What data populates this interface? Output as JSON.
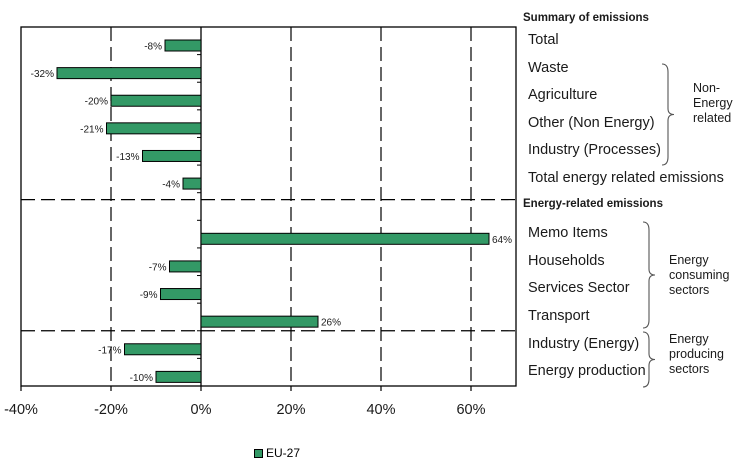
{
  "chart_data": {
    "type": "bar",
    "orientation": "horizontal",
    "title": "",
    "xlabel": "",
    "ylabel": "",
    "xlim": [
      -40,
      70
    ],
    "x_ticks": [
      -40,
      -20,
      0,
      20,
      40,
      60
    ],
    "x_tick_labels": [
      "-40%",
      "-20%",
      "0%",
      "20%",
      "40%",
      "60%"
    ],
    "grid": "vertical dashed",
    "bar_color": "#339966",
    "legend": {
      "position": "bottom",
      "entries": [
        "EU-27"
      ]
    },
    "series": [
      {
        "name": "EU-27",
        "values": [
          -8,
          -32,
          -20,
          -21,
          -13,
          -4,
          null,
          64,
          -7,
          -9,
          26,
          -17,
          -10
        ],
        "data_labels": [
          "-8%",
          "-32%",
          "-20%",
          "-21%",
          "-13%",
          "-4%",
          "",
          "64%",
          "-7%",
          "-9%",
          "26%",
          "-17%",
          "-10%"
        ]
      }
    ]
  },
  "right_panel": {
    "summary_header": "Summary of emissions",
    "summary_items": [
      "Total",
      "Waste",
      "Agriculture",
      "Other (Non Energy)",
      "Industry (Processes)",
      "Total energy related emissions"
    ],
    "energy_header": "Energy-related emissions",
    "energy_items": [
      "Memo Items",
      "Households",
      "Services Sector",
      "Transport",
      "Industry (Energy)",
      "Energy production"
    ],
    "groups": {
      "non_energy": [
        "Non-",
        "Energy",
        "related"
      ],
      "consuming": [
        "Energy",
        "consuming",
        "sectors"
      ],
      "producing": [
        "Energy",
        "producing",
        "sectors"
      ]
    }
  }
}
